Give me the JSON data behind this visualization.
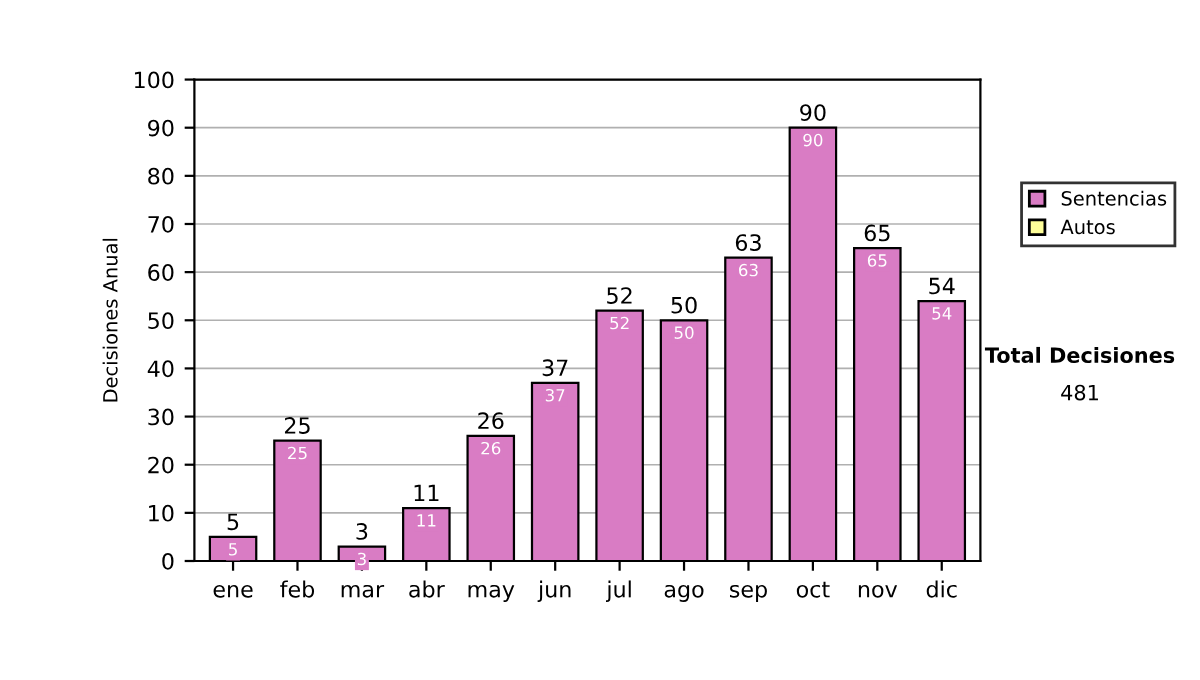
{
  "chart_data": {
    "type": "bar",
    "stacked": true,
    "ylabel": "Decisiones Anual",
    "categories": [
      "ene",
      "feb",
      "mar",
      "abr",
      "may",
      "jun",
      "jul",
      "ago",
      "sep",
      "oct",
      "nov",
      "dic"
    ],
    "series": [
      {
        "name": "Sentencias",
        "color": "#d97cc4",
        "values": [
          5,
          25,
          3,
          11,
          26,
          37,
          52,
          50,
          63,
          90,
          65,
          54
        ],
        "value_labels": [
          "5",
          "25",
          "3",
          "11",
          "26",
          "37",
          "52",
          "50",
          "63",
          "90",
          "65",
          "54"
        ]
      },
      {
        "name": "Autos",
        "color": "#ffff99",
        "values": [
          null,
          null,
          null,
          null,
          null,
          null,
          null,
          null,
          null,
          null,
          null,
          null
        ]
      }
    ],
    "totals": [
      "5",
      "25",
      "3",
      "11",
      "26",
      "37",
      "52",
      "50",
      "63",
      "90",
      "65",
      "54"
    ],
    "ylim": [
      0,
      100
    ],
    "yticks": [
      0,
      10,
      20,
      30,
      40,
      50,
      60,
      70,
      80,
      90,
      100
    ],
    "grid": "y",
    "legend": "right",
    "annotations": [
      "Total Decisiones",
      "481"
    ]
  }
}
